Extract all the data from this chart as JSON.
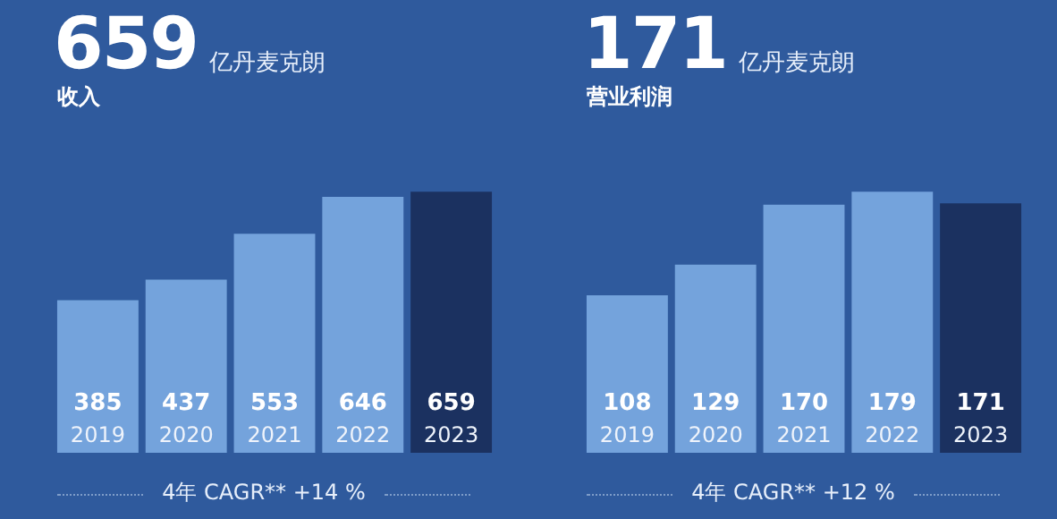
{
  "chart_data": [
    {
      "type": "bar",
      "title": "659",
      "subtitle": "亿丹麦克朗",
      "ylabel": "收入",
      "categories": [
        "2019",
        "2020",
        "2021",
        "2022",
        "2023"
      ],
      "values": [
        385,
        437,
        553,
        646,
        659
      ],
      "colors": [
        "#74a3dc",
        "#74a3dc",
        "#74a3dc",
        "#74a3dc",
        "#1b3160"
      ],
      "data_labels": true,
      "annotations": [
        "4年 CAGR** +14 %"
      ]
    },
    {
      "type": "bar",
      "title": "171",
      "subtitle": "亿丹麦克朗",
      "ylabel": "营业利润",
      "categories": [
        "2019",
        "2020",
        "2021",
        "2022",
        "2023"
      ],
      "values": [
        108,
        129,
        170,
        179,
        171
      ],
      "colors": [
        "#74a3dc",
        "#74a3dc",
        "#74a3dc",
        "#74a3dc",
        "#1b3160"
      ],
      "data_labels": true,
      "annotations": [
        "4年 CAGR** +12 %"
      ]
    }
  ]
}
